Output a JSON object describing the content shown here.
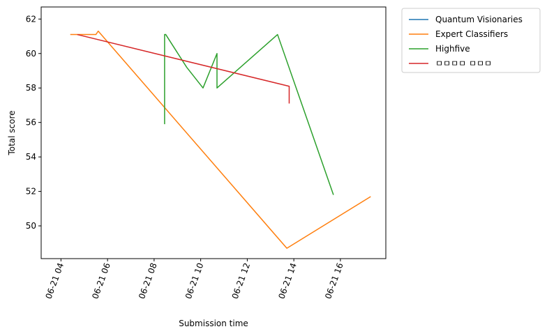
{
  "chart_data": {
    "type": "line",
    "xlabel": "Submission time",
    "ylabel": "Total score",
    "x_ticks": [
      "06-21 04",
      "06-21 06",
      "06-21 08",
      "06-21 10",
      "06-21 12",
      "06-21 14",
      "06-21 16"
    ],
    "y_ticks": [
      50,
      52,
      54,
      56,
      58,
      60,
      62
    ],
    "xlim_hours": [
      3.15,
      17.95
    ],
    "ylim": [
      48.1,
      62.7
    ],
    "grid": false,
    "legend_position": "outside-top-right",
    "series": [
      {
        "name": "Quantum Visionaries",
        "color": "#1f77b4",
        "x_hours": [],
        "y": []
      },
      {
        "name": "Expert Classifiers",
        "color": "#ff7f0e",
        "x_hours": [
          4.4,
          5.5,
          5.6,
          13.7,
          17.3
        ],
        "y": [
          61.1,
          61.1,
          61.3,
          48.7,
          51.7
        ]
      },
      {
        "name": "Highfive",
        "color": "#2ca02c",
        "x_hours": [
          8.45,
          8.45,
          8.5,
          9.4,
          10.1,
          10.7,
          10.7,
          13.3,
          15.7
        ],
        "y": [
          55.9,
          61.1,
          61.1,
          59.2,
          58.0,
          60.0,
          58.0,
          61.1,
          51.8
        ]
      },
      {
        "name": "ㅁㅁㅁㅁ ㅁㅁㅁ",
        "color": "#d62728",
        "x_hours": [
          4.7,
          13.8,
          13.8
        ],
        "y": [
          61.1,
          58.1,
          57.1
        ]
      }
    ]
  }
}
